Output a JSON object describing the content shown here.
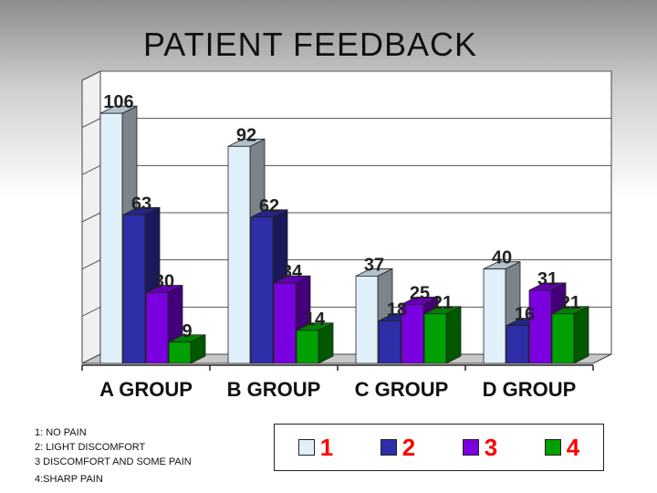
{
  "title": "PATIENT FEEDBACK",
  "notes": [
    "1: NO PAIN",
    "2:  LIGHT DISCOMFORT",
    "3 DISCOMFORT AND  SOME PAIN",
    "4:SHARP PAIN"
  ],
  "colors": {
    "s1": "#dff0fb",
    "s2": "#2e2ea8",
    "s3": "#7b00e0",
    "s4": "#00a000"
  },
  "chart_data": {
    "type": "bar",
    "categories": [
      "A GROUP",
      "B GROUP",
      "C GROUP",
      "D GROUP"
    ],
    "series": [
      {
        "name": "1",
        "values": [
          106,
          92,
          37,
          40
        ]
      },
      {
        "name": "2",
        "values": [
          63,
          62,
          18,
          16
        ]
      },
      {
        "name": "3",
        "values": [
          30,
          34,
          25,
          31
        ]
      },
      {
        "name": "4",
        "values": [
          9,
          14,
          21,
          21
        ]
      }
    ],
    "title": "PATIENT FEEDBACK",
    "ylim": [
      0,
      120
    ],
    "grid": true,
    "legend": "bottom-right"
  }
}
